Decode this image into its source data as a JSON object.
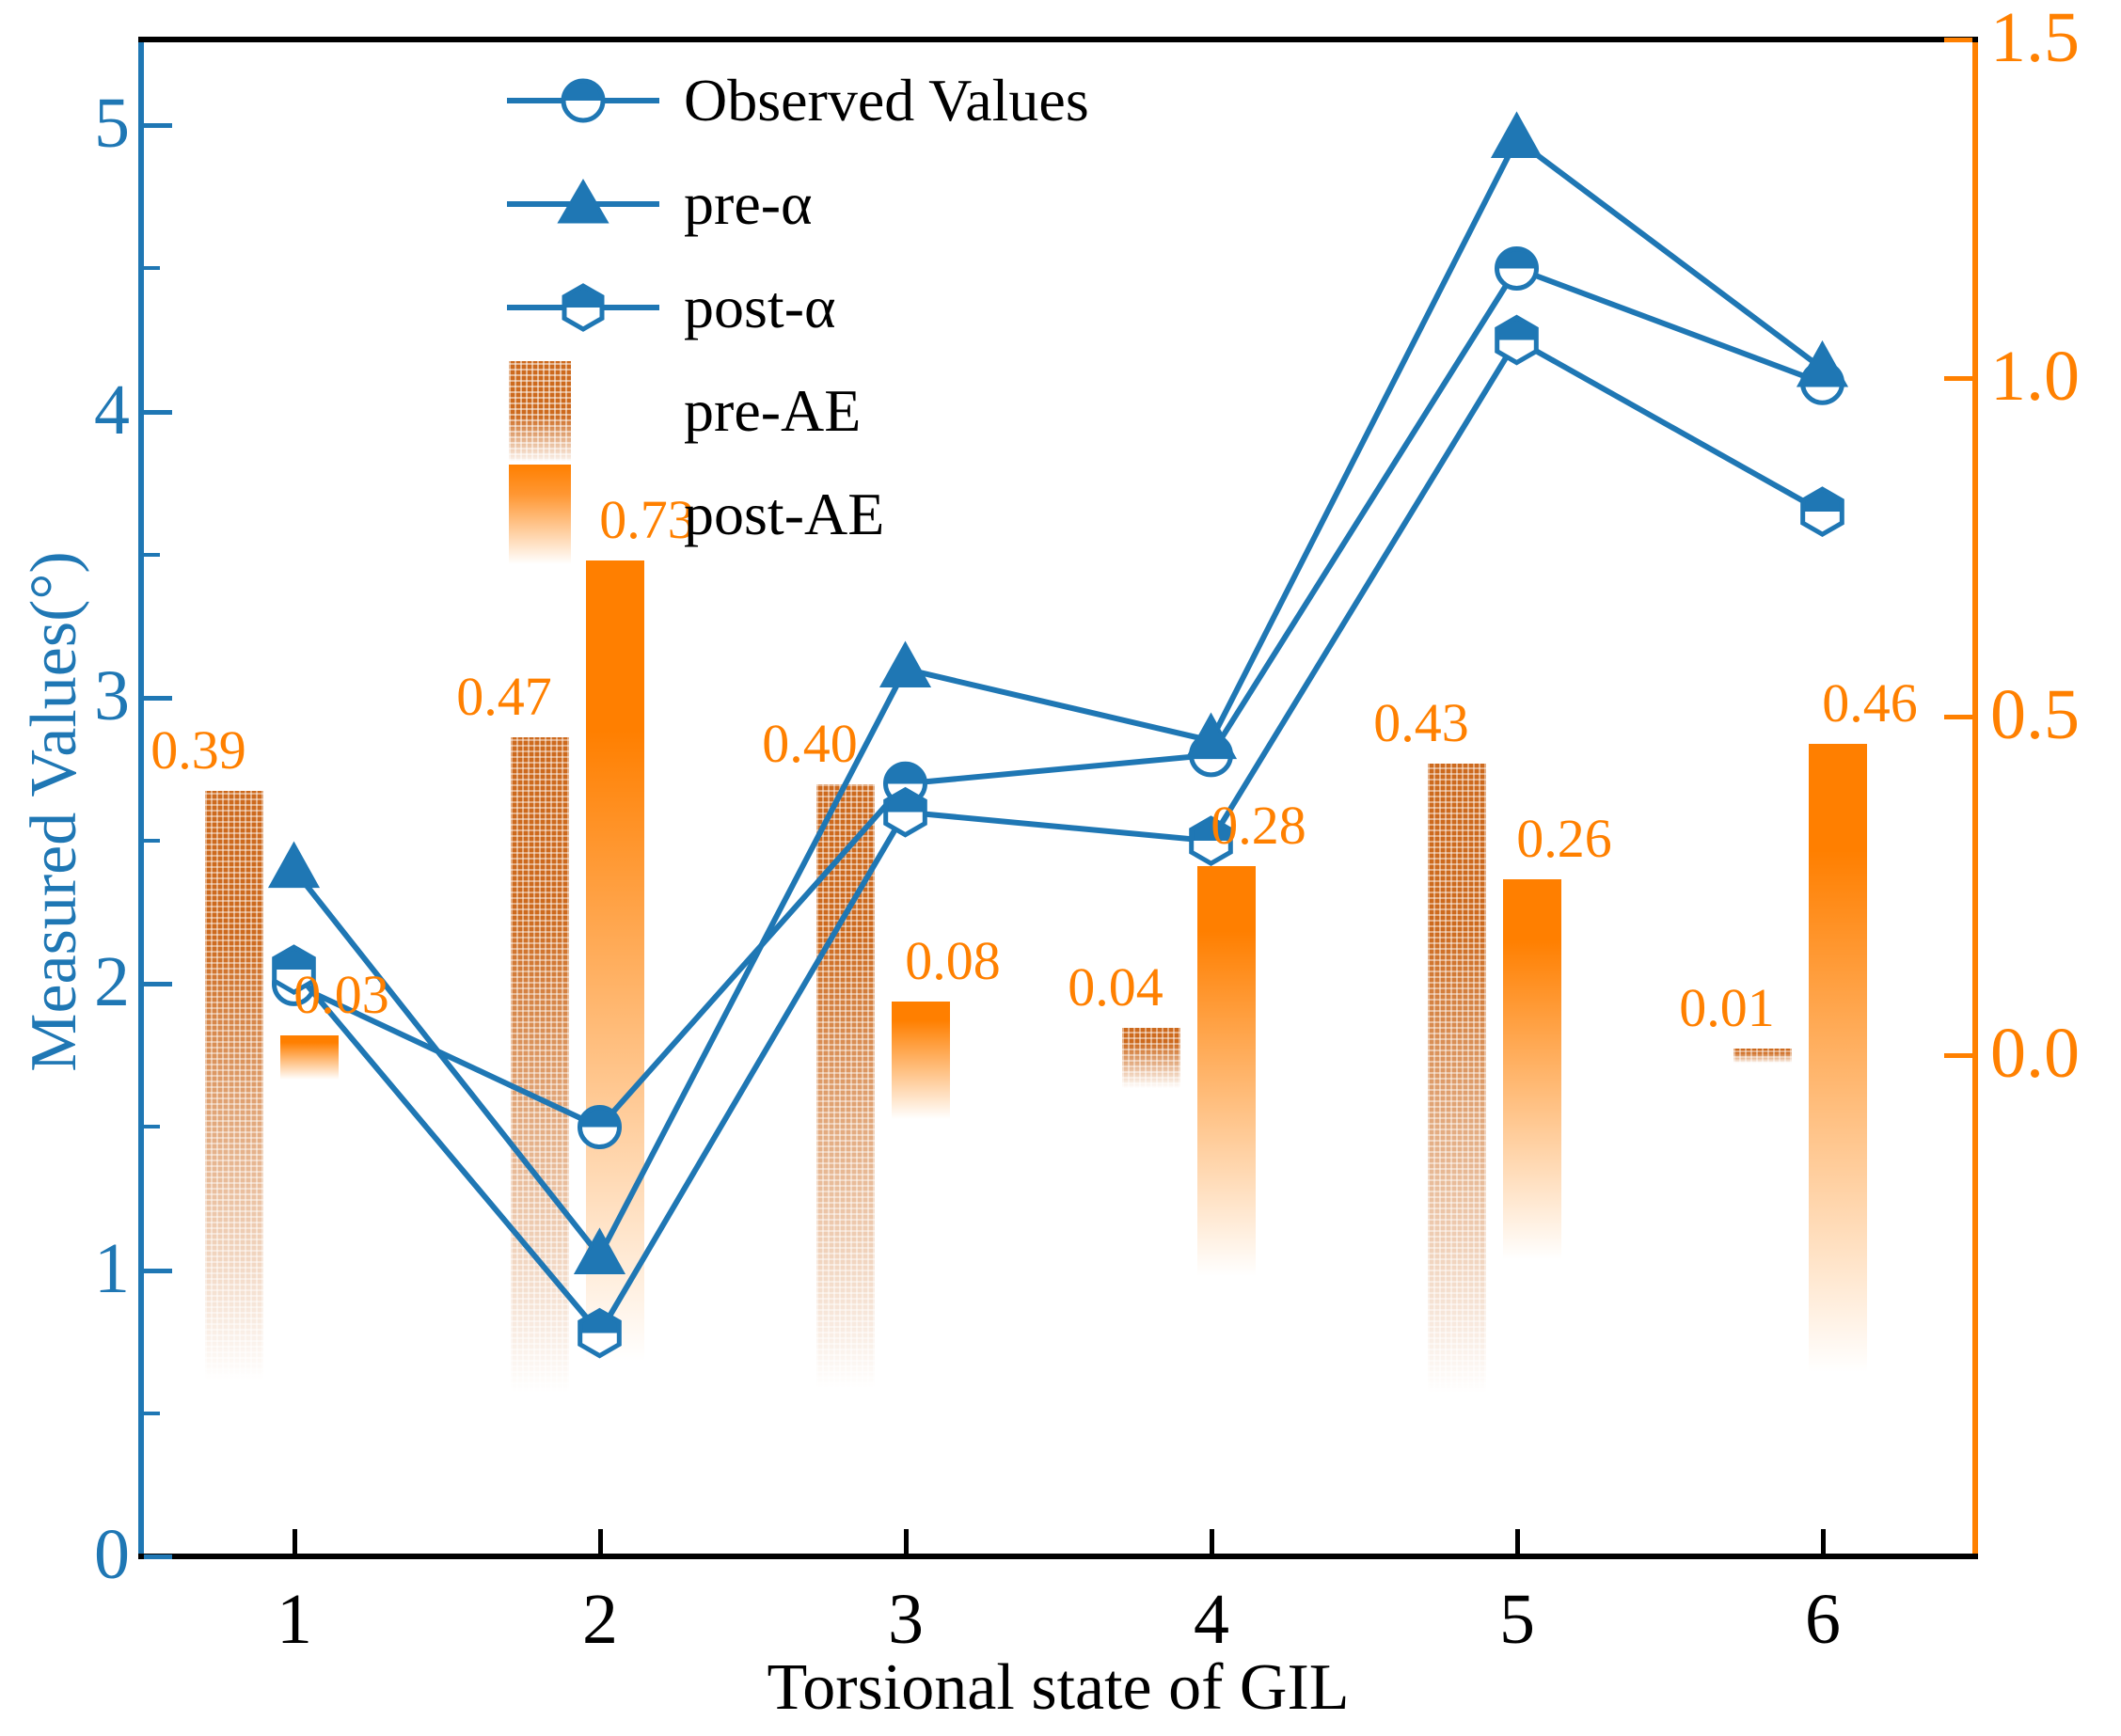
{
  "chart_data": {
    "type": "line+bar",
    "categories": [
      "1",
      "2",
      "3",
      "4",
      "5",
      "6"
    ],
    "x_axis": {
      "title": "Torsional state of GIL"
    },
    "left_axis": {
      "title": "Measured Values(°)",
      "tick_labels": [
        "0",
        "1",
        "2",
        "3",
        "4",
        "5"
      ],
      "tick_values": [
        0,
        1,
        2,
        3,
        4,
        5
      ],
      "minor_ticks": [
        0.5,
        1.5,
        2.5,
        3.5,
        4.5
      ],
      "range": [
        0,
        5.3
      ]
    },
    "right_axis": {
      "tick_labels": [
        "0.0",
        "0.5",
        "1.0",
        "1.5"
      ],
      "tick_values": [
        0,
        0.5,
        1.0,
        1.5
      ],
      "range": [
        -0.74,
        1.5
      ]
    },
    "line_series": [
      {
        "name": "Observed Values",
        "marker": "circle",
        "values": [
          2.0,
          1.5,
          2.7,
          2.8,
          4.5,
          4.1
        ]
      },
      {
        "name": "pre-α",
        "marker": "triangle",
        "values": [
          2.4,
          1.05,
          3.1,
          2.85,
          4.95,
          4.15
        ]
      },
      {
        "name": "post-α",
        "marker": "hexagon",
        "values": [
          2.05,
          0.78,
          2.6,
          2.5,
          4.25,
          3.65
        ]
      }
    ],
    "bar_series": [
      {
        "name": "pre-AE",
        "style": "textured",
        "values": [
          0.39,
          0.47,
          0.4,
          0.04,
          0.43,
          0.01
        ],
        "labels": [
          "0.39",
          "0.47",
          "0.40",
          "0.04",
          "0.43",
          "0.01"
        ]
      },
      {
        "name": "post-AE",
        "style": "gradient",
        "values": [
          0.03,
          0.73,
          0.08,
          0.28,
          0.26,
          0.46
        ],
        "labels": [
          "0.03",
          "0.73",
          "0.08",
          "0.28",
          "0.26",
          "0.46"
        ]
      }
    ],
    "legend_position": "upper-left-inside",
    "colors": {
      "line_blue": "#1f77b4",
      "axis_orange": "#ff8000",
      "bar_gradient_top": "#ff7f00",
      "bar_textured_base": "#cd6a1e",
      "axis_black": "#000000",
      "marker_fill_white": "#ffffff"
    }
  }
}
